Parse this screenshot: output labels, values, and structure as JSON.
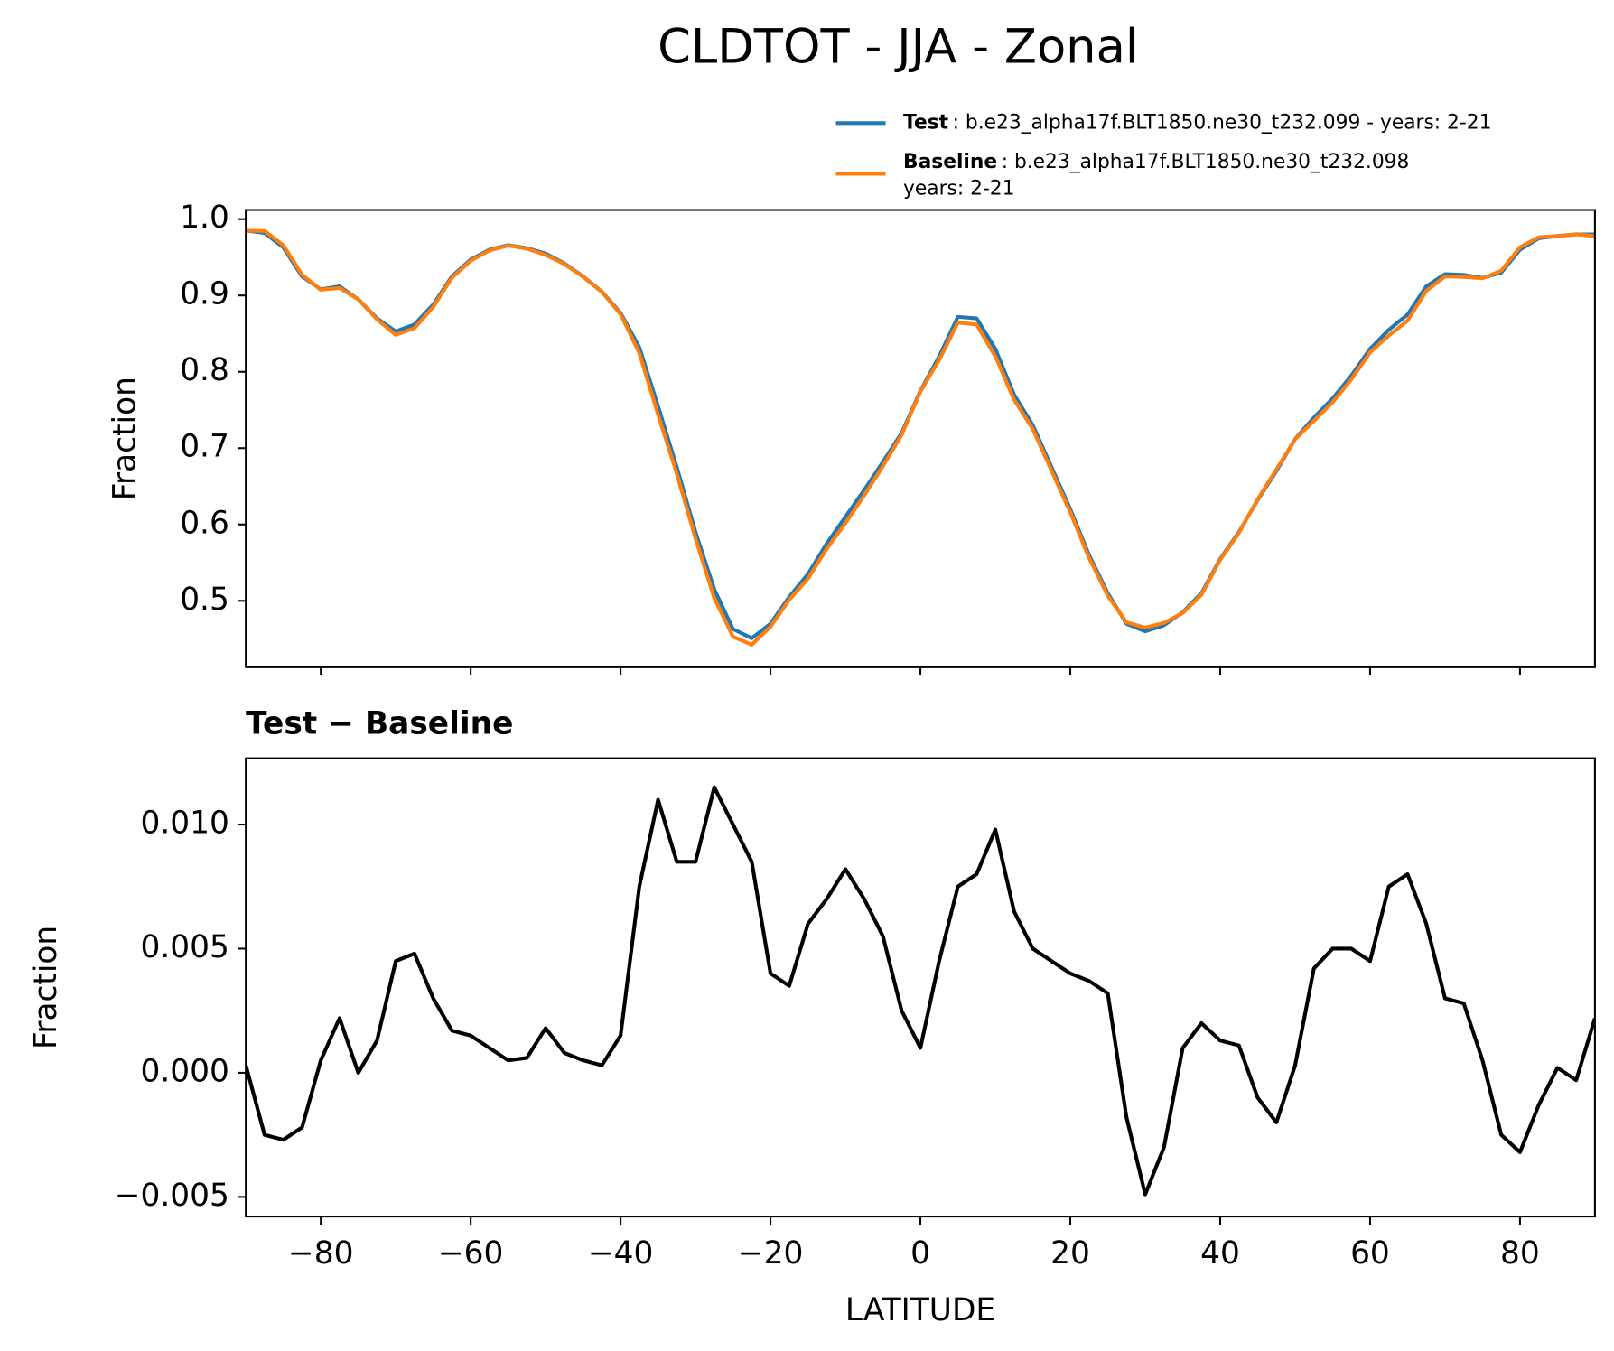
{
  "chart_data": [
    {
      "type": "line",
      "title": "CLDTOT - JJA - Zonal",
      "ylabel": "Fraction",
      "legend": "upper right",
      "x": [
        -90,
        -87.5,
        -85,
        -82.5,
        -80,
        -77.5,
        -75,
        -72.5,
        -70,
        -67.5,
        -65,
        -62.5,
        -60,
        -57.5,
        -55,
        -52.5,
        -50,
        -47.5,
        -45,
        -42.5,
        -40,
        -37.5,
        -35,
        -32.5,
        -30,
        -27.5,
        -25,
        -22.5,
        -20,
        -17.5,
        -15,
        -12.5,
        -10,
        -7.5,
        -5,
        -2.5,
        0,
        2.5,
        5,
        7.5,
        10,
        12.5,
        15,
        17.5,
        20,
        22.5,
        25,
        27.5,
        30,
        32.5,
        35,
        37.5,
        40,
        42.5,
        45,
        47.5,
        50,
        52.5,
        55,
        57.5,
        60,
        62.5,
        65,
        67.5,
        70,
        72.5,
        75,
        77.5,
        80,
        82.5,
        85,
        87.5,
        90
      ],
      "series": [
        {
          "name": "Test",
          "description": [
            ": b.e23_alpha17f.BLT1850.ne30_t232.099 - years: 2-21"
          ],
          "color": "#1f77b4",
          "values": [
            0.985,
            0.982,
            0.963,
            0.925,
            0.908,
            0.912,
            0.895,
            0.87,
            0.853,
            0.862,
            0.888,
            0.925,
            0.947,
            0.96,
            0.966,
            0.962,
            0.955,
            0.942,
            0.925,
            0.905,
            0.877,
            0.832,
            0.755,
            0.675,
            0.59,
            0.515,
            0.463,
            0.451,
            0.47,
            0.505,
            0.535,
            0.575,
            0.61,
            0.645,
            0.682,
            0.72,
            0.775,
            0.82,
            0.872,
            0.87,
            0.83,
            0.77,
            0.73,
            0.675,
            0.62,
            0.56,
            0.51,
            0.47,
            0.46,
            0.468,
            0.485,
            0.51,
            0.555,
            0.59,
            0.632,
            0.67,
            0.712,
            0.74,
            0.765,
            0.795,
            0.83,
            0.855,
            0.875,
            0.912,
            0.928,
            0.927,
            0.923,
            0.93,
            0.96,
            0.975,
            0.978,
            0.98,
            0.98
          ]
        },
        {
          "name": "Baseline",
          "description": [
            ": b.e23_alpha17f.BLT1850.ne30_t232.098",
            "years: 2-21"
          ],
          "color": "#ff7f0e",
          "values": [
            0.9847,
            0.9845,
            0.9657,
            0.9272,
            0.9075,
            0.9098,
            0.895,
            0.8687,
            0.8485,
            0.8572,
            0.885,
            0.9233,
            0.9455,
            0.959,
            0.9655,
            0.9614,
            0.9532,
            0.9412,
            0.9245,
            0.9047,
            0.8755,
            0.8245,
            0.744,
            0.6665,
            0.5815,
            0.5035,
            0.453,
            0.4425,
            0.466,
            0.5015,
            0.529,
            0.568,
            0.6018,
            0.638,
            0.6765,
            0.7175,
            0.774,
            0.8155,
            0.8645,
            0.862,
            0.8202,
            0.7635,
            0.725,
            0.6705,
            0.616,
            0.5563,
            0.5068,
            0.4718,
            0.4649,
            0.471,
            0.484,
            0.508,
            0.5537,
            0.5889,
            0.633,
            0.672,
            0.7117,
            0.7358,
            0.76,
            0.79,
            0.8255,
            0.8475,
            0.867,
            0.906,
            0.925,
            0.9242,
            0.9225,
            0.9325,
            0.9632,
            0.9763,
            0.9778,
            0.9803,
            0.9778
          ]
        }
      ],
      "xlim": [
        -90,
        90
      ],
      "xticks": [
        -80,
        -60,
        -40,
        -20,
        0,
        20,
        40,
        60,
        80
      ],
      "ylim": [
        0.413,
        1.012
      ],
      "yticks": [
        {
          "value": 1.0,
          "label": "1.0"
        },
        0.9,
        0.8,
        0.7,
        0.6,
        0.5
      ]
    },
    {
      "type": "line",
      "title": "Test − Baseline",
      "xlabel": "LATITUDE",
      "ylabel": "Fraction",
      "x": [
        -90,
        -87.5,
        -85,
        -82.5,
        -80,
        -77.5,
        -75,
        -72.5,
        -70,
        -67.5,
        -65,
        -62.5,
        -60,
        -57.5,
        -55,
        -52.5,
        -50,
        -47.5,
        -45,
        -42.5,
        -40,
        -37.5,
        -35,
        -32.5,
        -30,
        -27.5,
        -25,
        -22.5,
        -20,
        -17.5,
        -15,
        -12.5,
        -10,
        -7.5,
        -5,
        -2.5,
        0,
        2.5,
        5,
        7.5,
        10,
        12.5,
        15,
        17.5,
        20,
        22.5,
        25,
        27.5,
        30,
        32.5,
        35,
        37.5,
        40,
        42.5,
        45,
        47.5,
        50,
        52.5,
        55,
        57.5,
        60,
        62.5,
        65,
        67.5,
        70,
        72.5,
        75,
        77.5,
        80,
        82.5,
        85,
        87.5,
        90
      ],
      "series": [
        {
          "color": "#000000",
          "values": [
            0.0003,
            -0.0025,
            -0.0027,
            -0.0022,
            0.0005,
            0.0022,
            0.0,
            0.0013,
            0.0045,
            0.0048,
            0.003,
            0.0017,
            0.0015,
            0.001,
            0.0005,
            0.0006,
            0.0018,
            0.0008,
            0.0005,
            0.0003,
            0.0015,
            0.0075,
            0.011,
            0.0085,
            0.0085,
            0.0115,
            0.01,
            0.0085,
            0.004,
            0.0035,
            0.006,
            0.007,
            0.0082,
            0.007,
            0.0055,
            0.0025,
            0.001,
            0.0045,
            0.0075,
            0.008,
            0.0098,
            0.0065,
            0.005,
            0.0045,
            0.004,
            0.0037,
            0.0032,
            -0.0018,
            -0.0049,
            -0.003,
            0.001,
            0.002,
            0.0013,
            0.0011,
            -0.001,
            -0.002,
            0.0003,
            0.0042,
            0.005,
            0.005,
            0.0045,
            0.0075,
            0.008,
            0.006,
            0.003,
            0.0028,
            0.0005,
            -0.0025,
            -0.0032,
            -0.0013,
            0.0002,
            -0.0003,
            0.0022
          ]
        }
      ],
      "xlim": [
        -90,
        90
      ],
      "xticks": [
        {
          "value": -80,
          "label": "−80"
        },
        {
          "value": -60,
          "label": "−60"
        },
        {
          "value": -40,
          "label": "−40"
        },
        {
          "value": -20,
          "label": "−20"
        },
        0,
        20,
        40,
        60,
        80
      ],
      "ylim": [
        -0.00579,
        0.01267
      ],
      "yticks": [
        {
          "value": 0.01,
          "label": "0.010"
        },
        0.005,
        {
          "value": 0,
          "label": "0.000"
        },
        {
          "value": -0.005,
          "label": "−0.005"
        }
      ]
    }
  ]
}
